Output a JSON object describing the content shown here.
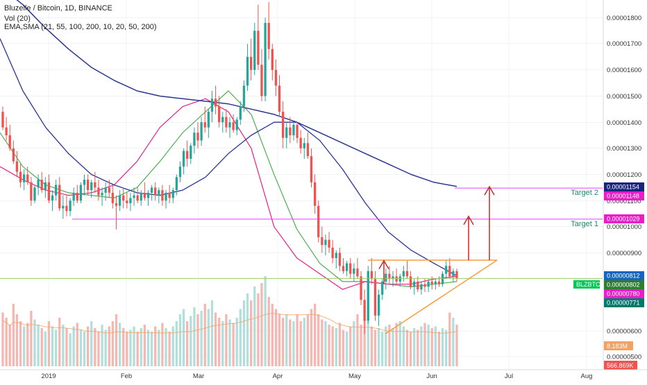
{
  "header": {
    "title": "Bluzelle / Bitcoin, 1D, BINANCE",
    "volume_label": "Vol (20)",
    "ma_label": "EMA,SMA (21, 55, 100, 200, 10, 20, 50, 200)"
  },
  "colors": {
    "up": "#26a69a",
    "down": "#ef5350",
    "vol_up": "#b2dfdb",
    "vol_down": "#f5b7b1",
    "ema_fast": "#e91e8c",
    "ema_mid": "#4caf50",
    "ema_slow": "#283593",
    "triangle": "#f59e3c",
    "target_line": "#e040fb",
    "arrow": "#c62828",
    "current_line": "#9ccc65",
    "target_text": "#1b8a6b"
  },
  "chart_data": {
    "type": "candlestick",
    "y_ticks": [
      "0.00001800",
      "0.00001700",
      "0.00001600",
      "0.00001500",
      "0.00001400",
      "0.00001300",
      "0.00001200",
      "0.00001100",
      "0.00001000",
      "0.00000900",
      "0.00000600",
      "0.00000500"
    ],
    "x_ticks": [
      "2019",
      "Feb",
      "Mar",
      "Apr",
      "May",
      "Jun",
      "Jul",
      "Aug"
    ],
    "price_badges": [
      {
        "label": "0.00001154",
        "value": 1.154e-05,
        "color": "#1a237e"
      },
      {
        "label": "0.00001148",
        "value": 1.148e-05,
        "color": "#e91ec8"
      },
      {
        "label": "0.00001029",
        "value": 1.029e-05,
        "color": "#e91ec8"
      },
      {
        "label": "0.00000812",
        "value": 8.12e-06,
        "color": "#1565c0"
      },
      {
        "label": "0.00000802",
        "value": 8.02e-06,
        "color": "#2e7d32"
      },
      {
        "label": "0.00000780",
        "value": 7.8e-06,
        "color": "#e91ec8"
      },
      {
        "label": "0.00000771",
        "value": 7.71e-06,
        "color": "#00796b"
      }
    ],
    "symbol_badge": "BLZBTC",
    "volume_badges": [
      "8.183M",
      "566.869K"
    ],
    "targets": [
      {
        "label": "Target 2",
        "value": 1.148e-05
      },
      {
        "label": "Target 1",
        "value": 1.029e-05
      }
    ],
    "triangle": {
      "resistance": 8.72e-06,
      "apex_value": 8.72e-06,
      "base_low": 5.9e-06
    },
    "current_price": 8.02e-06,
    "candles": [
      [
        1.44e-05,
        1.46e-05,
        1.37e-05,
        1.38e-05
      ],
      [
        1.38e-05,
        1.42e-05,
        1.33e-05,
        1.35e-05
      ],
      [
        1.35e-05,
        1.39e-05,
        1.29e-05,
        1.3e-05
      ],
      [
        1.3e-05,
        1.33e-05,
        1.24e-05,
        1.25e-05
      ],
      [
        1.25e-05,
        1.29e-05,
        1.19e-05,
        1.21e-05
      ],
      [
        1.21e-05,
        1.24e-05,
        1.15e-05,
        1.17e-05
      ],
      [
        1.17e-05,
        1.22e-05,
        1.14e-05,
        1.2e-05
      ],
      [
        1.2e-05,
        1.23e-05,
        1.16e-05,
        1.17e-05
      ],
      [
        1.17e-05,
        1.19e-05,
        1.08e-05,
        1.1e-05
      ],
      [
        1.1e-05,
        1.16e-05,
        1.09e-05,
        1.15e-05
      ],
      [
        1.15e-05,
        1.2e-05,
        1.12e-05,
        1.18e-05
      ],
      [
        1.18e-05,
        1.21e-05,
        1.13e-05,
        1.14e-05
      ],
      [
        1.14e-05,
        1.19e-05,
        1.11e-05,
        1.17e-05
      ],
      [
        1.17e-05,
        1.2e-05,
        1.09e-05,
        1.1e-05
      ],
      [
        1.1e-05,
        1.14e-05,
        1.06e-05,
        1.12e-05
      ],
      [
        1.12e-05,
        1.18e-05,
        1.1e-05,
        1.16e-05
      ],
      [
        1.16e-05,
        1.19e-05,
        1.06e-05,
        1.07e-05
      ],
      [
        1.07e-05,
        1.12e-05,
        1.03e-05,
        1.08e-05
      ],
      [
        1.08e-05,
        1.12e-05,
        1.04e-05,
        1.06e-05
      ],
      [
        1.06e-05,
        1.11e-05,
        1.04e-05,
        1.1e-05
      ],
      [
        1.1e-05,
        1.15e-05,
        1.08e-05,
        1.13e-05
      ],
      [
        1.13e-05,
        1.16e-05,
        1.09e-05,
        1.1e-05
      ],
      [
        1.1e-05,
        1.17e-05,
        1.09e-05,
        1.16e-05
      ],
      [
        1.16e-05,
        1.2e-05,
        1.12e-05,
        1.18e-05
      ],
      [
        1.18e-05,
        1.2e-05,
        1.12e-05,
        1.14e-05
      ],
      [
        1.14e-05,
        1.18e-05,
        1.11e-05,
        1.17e-05
      ],
      [
        1.17e-05,
        1.21e-05,
        1.13e-05,
        1.15e-05
      ],
      [
        1.15e-05,
        1.18e-05,
        1.1e-05,
        1.12e-05
      ],
      [
        1.12e-05,
        1.15e-05,
        1.08e-05,
        1.13e-05
      ],
      [
        1.13e-05,
        1.17e-05,
        1.1e-05,
        1.15e-05
      ],
      [
        1.15e-05,
        1.18e-05,
        1.11e-05,
        1.13e-05
      ],
      [
        1.13e-05,
        1.16e-05,
        1.07e-05,
        1.09e-05
      ],
      [
        1.09e-05,
        1.12e-05,
        9.9e-06,
        1.08e-05
      ],
      [
        1.08e-05,
        1.14e-05,
        1.06e-05,
        1.12e-05
      ],
      [
        1.12e-05,
        1.15e-05,
        1.07e-05,
        1.1e-05
      ],
      [
        1.1e-05,
        1.13e-05,
        1.07e-05,
        1.09e-05
      ],
      [
        1.09e-05,
        1.13e-05,
        1.06e-05,
        1.11e-05
      ],
      [
        1.11e-05,
        1.15e-05,
        1.08e-05,
        1.12e-05
      ],
      [
        1.12e-05,
        1.15e-05,
        1.09e-05,
        1.1e-05
      ],
      [
        1.1e-05,
        1.14e-05,
        1.08e-05,
        1.13e-05
      ],
      [
        1.13e-05,
        1.17e-05,
        1.1e-05,
        1.11e-05
      ],
      [
        1.11e-05,
        1.14e-05,
        1.08e-05,
        1.13e-05
      ],
      [
        1.13e-05,
        1.16e-05,
        1.1e-05,
        1.15e-05
      ],
      [
        1.15e-05,
        1.17e-05,
        1.1e-05,
        1.12e-05
      ],
      [
        1.12e-05,
        1.15e-05,
        1.09e-05,
        1.14e-05
      ],
      [
        1.14e-05,
        1.16e-05,
        1.08e-05,
        1.1e-05
      ],
      [
        1.1e-05,
        1.14e-05,
        1.07e-05,
        1.13e-05
      ],
      [
        1.13e-05,
        1.16e-05,
        1.09e-05,
        1.11e-05
      ],
      [
        1.11e-05,
        1.15e-05,
        1.09e-05,
        1.14e-05
      ],
      [
        1.14e-05,
        1.2e-05,
        1.12e-05,
        1.19e-05
      ],
      [
        1.19e-05,
        1.25e-05,
        1.17e-05,
        1.23e-05
      ],
      [
        1.23e-05,
        1.3e-05,
        1.2e-05,
        1.29e-05
      ],
      [
        1.29e-05,
        1.33e-05,
        1.23e-05,
        1.26e-05
      ],
      [
        1.26e-05,
        1.32e-05,
        1.24e-05,
        1.31e-05
      ],
      [
        1.31e-05,
        1.38e-05,
        1.28e-05,
        1.36e-05
      ],
      [
        1.36e-05,
        1.4e-05,
        1.3e-05,
        1.33e-05
      ],
      [
        1.33e-05,
        1.42e-05,
        1.31e-05,
        1.4e-05
      ],
      [
        1.4e-05,
        1.46e-05,
        1.36e-05,
        1.38e-05
      ],
      [
        1.38e-05,
        1.45e-05,
        1.34e-05,
        1.44e-05
      ],
      [
        1.44e-05,
        1.52e-05,
        1.4e-05,
        1.49e-05
      ],
      [
        1.49e-05,
        1.54e-05,
        1.43e-05,
        1.46e-05
      ],
      [
        1.46e-05,
        1.5e-05,
        1.38e-05,
        1.4e-05
      ],
      [
        1.4e-05,
        1.44e-05,
        1.36e-05,
        1.42e-05
      ],
      [
        1.42e-05,
        1.45e-05,
        1.36e-05,
        1.38e-05
      ],
      [
        1.38e-05,
        1.42e-05,
        1.34e-05,
        1.4e-05
      ],
      [
        1.4e-05,
        1.43e-05,
        1.36e-05,
        1.37e-05
      ],
      [
        1.37e-05,
        1.42e-05,
        1.35e-05,
        1.41e-05
      ],
      [
        1.41e-05,
        1.48e-05,
        1.39e-05,
        1.46e-05
      ],
      [
        1.46e-05,
        1.56e-05,
        1.44e-05,
        1.54e-05
      ],
      [
        1.54e-05,
        1.7e-05,
        1.52e-05,
        1.65e-05
      ],
      [
        1.65e-05,
        1.72e-05,
        1.56e-05,
        1.6e-05
      ],
      [
        1.6e-05,
        1.78e-05,
        1.58e-05,
        1.75e-05
      ],
      [
        1.75e-05,
        1.85e-05,
        1.6e-05,
        1.62e-05
      ],
      [
        1.62e-05,
        1.68e-05,
        1.48e-05,
        1.5e-05
      ],
      [
        1.5e-05,
        1.8e-05,
        1.48e-05,
        1.78e-05
      ],
      [
        1.78e-05,
        1.86e-05,
        1.64e-05,
        1.68e-05
      ],
      [
        1.68e-05,
        1.7e-05,
        1.56e-05,
        1.6e-05
      ],
      [
        1.6e-05,
        1.64e-05,
        1.5e-05,
        1.54e-05
      ],
      [
        1.54e-05,
        1.58e-05,
        1.42e-05,
        1.44e-05
      ],
      [
        1.44e-05,
        1.48e-05,
        1.3e-05,
        1.34e-05
      ],
      [
        1.34e-05,
        1.4e-05,
        1.3e-05,
        1.38e-05
      ],
      [
        1.38e-05,
        1.42e-05,
        1.32e-05,
        1.35e-05
      ],
      [
        1.35e-05,
        1.4e-05,
        1.33e-05,
        1.39e-05
      ],
      [
        1.39e-05,
        1.4e-05,
        1.32e-05,
        1.34e-05
      ],
      [
        1.34e-05,
        1.37e-05,
        1.28e-05,
        1.3e-05
      ],
      [
        1.3e-05,
        1.34e-05,
        1.26e-05,
        1.32e-05
      ],
      [
        1.32e-05,
        1.36e-05,
        1.26e-05,
        1.27e-05
      ],
      [
        1.27e-05,
        1.3e-05,
        1.15e-05,
        1.17e-05
      ],
      [
        1.17e-05,
        1.2e-05,
        1.05e-05,
        1.08e-05
      ],
      [
        1.08e-05,
        1.1e-05,
        9.4e-06,
        9.6e-06
      ],
      [
        9.6e-06,
        1e-05,
        9e-06,
        9.3e-06
      ],
      [
        9.3e-06,
        9.7e-06,
        8.9e-06,
        9.5e-06
      ],
      [
        9.5e-06,
        9.8e-06,
        9e-06,
        9.2e-06
      ],
      [
        9.2e-06,
        9.5e-06,
        8.6e-06,
        8.8e-06
      ],
      [
        8.8e-06,
        9.1e-06,
        8.4e-06,
        9e-06
      ],
      [
        9e-06,
        9.2e-06,
        8.3e-06,
        8.5e-06
      ],
      [
        8.5e-06,
        8.8e-06,
        8.2e-06,
        8.3e-06
      ],
      [
        8.3e-06,
        8.7e-06,
        8.1e-06,
        8.6e-06
      ],
      [
        8.6e-06,
        8.8e-06,
        8e-06,
        8.2e-06
      ],
      [
        8.2e-06,
        8.6e-06,
        7.9e-06,
        8.4e-06
      ],
      [
        8.4e-06,
        8.8e-06,
        8e-06,
        8.1e-06
      ],
      [
        8.1e-06,
        8.3e-06,
        7e-06,
        7.2e-06
      ],
      [
        7.2e-06,
        7.6e-06,
        5.9e-06,
        6.4e-06
      ],
      [
        6.4e-06,
        8.5e-06,
        6.3e-06,
        8.3e-06
      ],
      [
        8.3e-06,
        8.8e-06,
        7.8e-06,
        8e-06
      ],
      [
        8e-06,
        8.3e-06,
        6.4e-06,
        6.6e-06
      ],
      [
        6.6e-06,
        7.6e-06,
        6.2e-06,
        7.4e-06
      ],
      [
        7.4e-06,
        8e-06,
        7.2e-06,
        7.9e-06
      ],
      [
        7.9e-06,
        8.4e-06,
        7.6e-06,
        8.2e-06
      ],
      [
        8.2e-06,
        8.5e-06,
        7.8e-06,
        8e-06
      ],
      [
        8e-06,
        8.3e-06,
        7.7e-06,
        8.1e-06
      ],
      [
        8.1e-06,
        8.4e-06,
        7.8e-06,
        7.9e-06
      ],
      [
        7.9e-06,
        8.2e-06,
        7.7e-06,
        8.1e-06
      ],
      [
        8.1e-06,
        8.5e-06,
        7.9e-06,
        8.3e-06
      ],
      [
        8.3e-06,
        8.7e-06,
        8e-06,
        8.1e-06
      ],
      [
        8.1e-06,
        8.3e-06,
        7.6e-06,
        7.7e-06
      ],
      [
        7.7e-06,
        8e-06,
        7.4e-06,
        7.9e-06
      ],
      [
        7.9e-06,
        8.1e-06,
        7.5e-06,
        7.6e-06
      ],
      [
        7.6e-06,
        7.9e-06,
        7.4e-06,
        7.8e-06
      ],
      [
        7.8e-06,
        8e-06,
        7.5e-06,
        7.7e-06
      ],
      [
        7.7e-06,
        8e-06,
        7.5e-06,
        7.9e-06
      ],
      [
        7.9e-06,
        8.1e-06,
        7.6e-06,
        7.8e-06
      ],
      [
        7.8e-06,
        8e-06,
        7.6e-06,
        7.9e-06
      ],
      [
        7.9e-06,
        8.1e-06,
        7.7e-06,
        7.8e-06
      ],
      [
        7.8e-06,
        8.3e-06,
        7.7e-06,
        8.2e-06
      ],
      [
        8.2e-06,
        8.7e-06,
        8e-06,
        8.5e-06
      ],
      [
        8.5e-06,
        8.8e-06,
        8e-06,
        8.1e-06
      ],
      [
        8.1e-06,
        8.4e-06,
        7.9e-06,
        8.3e-06
      ],
      [
        8.3e-06,
        8.4e-06,
        7.9e-06,
        8.02e-06
      ]
    ],
    "volume": [
      310,
      280,
      240,
      360,
      300,
      260,
      230,
      250,
      320,
      270,
      240,
      220,
      200,
      260,
      230,
      210,
      280,
      240,
      220,
      190,
      230,
      250,
      210,
      200,
      230,
      260,
      220,
      200,
      240,
      210,
      230,
      260,
      300,
      250,
      220,
      200,
      210,
      230,
      200,
      220,
      240,
      210,
      200,
      230,
      210,
      250,
      220,
      200,
      230,
      260,
      300,
      330,
      260,
      290,
      340,
      300,
      320,
      360,
      330,
      380,
      310,
      280,
      260,
      300,
      270,
      250,
      280,
      330,
      380,
      420,
      380,
      460,
      420,
      480,
      520,
      400,
      360,
      330,
      300,
      280,
      300,
      270,
      260,
      300,
      260,
      280,
      300,
      330,
      360,
      300,
      270,
      260,
      240,
      230,
      220,
      250,
      210,
      200,
      230,
      260,
      300,
      240,
      270,
      260,
      230,
      210,
      220,
      200,
      230,
      240,
      220,
      250,
      260,
      230,
      210,
      200,
      220,
      210,
      230,
      250,
      240,
      220,
      230,
      200,
      220,
      210
    ],
    "ma_values": {
      "ema_fast": [
        1.23e-05,
        1.18e-05,
        1.14e-05,
        1.12e-05,
        1.13e-05,
        1.16e-05,
        1.25e-05,
        1.38e-05,
        1.46e-05,
        1.49e-05,
        1.44e-05,
        1.3e-05,
        1e-05,
        8.8e-06,
        8.2e-06,
        7.6e-06,
        7.9e-06,
        7.8e-06,
        7.8e-06,
        8e-06,
        8.1e-06
      ],
      "ema_mid": [
        1.36e-05,
        1.23e-05,
        1.16e-05,
        1.13e-05,
        1.12e-05,
        1.11e-05,
        1.15e-05,
        1.25e-05,
        1.36e-05,
        1.44e-05,
        1.52e-05,
        1.43e-05,
        1.2e-05,
        9.9e-06,
        8.6e-06,
        7.9e-06,
        7.9e-06,
        7.8e-06,
        7.7e-06,
        7.8e-06,
        7.9e-06
      ],
      "ema_slow": [
        1.72e-05,
        1.52e-05,
        1.38e-05,
        1.28e-05,
        1.2e-05,
        1.16e-05,
        1.13e-05,
        1.12e-05,
        1.14e-05,
        1.19e-05,
        1.28e-05,
        1.35e-05,
        1.4e-05,
        1.4e-05,
        1.33e-05,
        1.22e-05,
        1.09e-05,
        9.8e-06,
        9.1e-06,
        8.6e-06,
        8.12e-06
      ],
      "ma_long": [
        1.92e-05,
        1.85e-05,
        1.76e-05,
        1.68e-05,
        1.61e-05,
        1.56e-05,
        1.52e-05,
        1.5e-05,
        1.49e-05,
        1.48e-05,
        1.47e-05,
        1.45e-05,
        1.43e-05,
        1.4e-05,
        1.36e-05,
        1.32e-05,
        1.28e-05,
        1.24e-05,
        1.2e-05,
        1.17e-05,
        1.154e-05
      ]
    }
  }
}
